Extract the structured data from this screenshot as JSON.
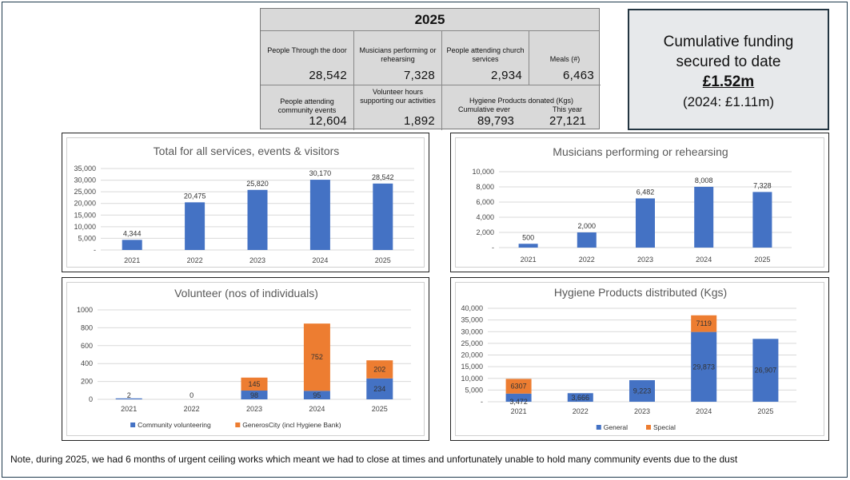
{
  "stats": {
    "year": "2025",
    "cells": [
      {
        "label": "People Through the door",
        "value": "28,542"
      },
      {
        "label": "Musicians performing or rehearsing",
        "value": "7,328"
      },
      {
        "label": "People attending church services",
        "value": "2,934"
      },
      {
        "label": "Meals (#)",
        "value": "6,463"
      },
      {
        "label": "People attending community events",
        "value": "12,604"
      },
      {
        "label": "Volunteer hours supporting our activities",
        "value": "1,892"
      },
      {
        "label": "Hygiene Products donated (Kgs)",
        "sub1": "Cumulative ever",
        "sub2": "This year",
        "value1": "89,793",
        "value2": "27,121"
      }
    ]
  },
  "funding": {
    "line1": "Cumulative funding",
    "line2": "secured to date",
    "amount": "£1.52m",
    "previous": "(2024: £1.11m)"
  },
  "note": "Note, during 2025, we had 6 months of urgent ceiling works which meant we had to close at times and unfortunately unable to hold many community events due to the dust",
  "colors": {
    "blue": "#4472c4",
    "orange": "#ed7d31",
    "grid": "#d9d9d9"
  },
  "chart_data": [
    {
      "type": "bar",
      "title": "Total for all services, events & visitors",
      "categories": [
        "2021",
        "2022",
        "2023",
        "2024",
        "2025"
      ],
      "values": [
        4344,
        20475,
        25820,
        30170,
        28542
      ],
      "value_labels": [
        "4,344",
        "20,475",
        "25,820",
        "30,170",
        "28,542"
      ],
      "ylim": [
        0,
        35000
      ],
      "yticks": [
        0,
        5000,
        10000,
        15000,
        20000,
        25000,
        30000,
        35000
      ],
      "ytick_labels": [
        "-",
        "5,000",
        "10,000",
        "15,000",
        "20,000",
        "25,000",
        "30,000",
        "35,000"
      ]
    },
    {
      "type": "bar",
      "title": "Musicians performing or rehearsing",
      "categories": [
        "2021",
        "2022",
        "2023",
        "2024",
        "2025"
      ],
      "values": [
        500,
        2000,
        6482,
        8008,
        7328
      ],
      "value_labels": [
        "500",
        "2,000",
        "6,482",
        "8,008",
        "7,328"
      ],
      "ylim": [
        0,
        10000
      ],
      "yticks": [
        0,
        2000,
        4000,
        6000,
        8000,
        10000
      ],
      "ytick_labels": [
        "-",
        "2,000",
        "4,000",
        "6,000",
        "8,000",
        "10,000"
      ]
    },
    {
      "type": "stacked-bar",
      "title": "Volunteer (nos of individuals)",
      "categories": [
        "2021",
        "2022",
        "2023",
        "2024",
        "2025"
      ],
      "series": [
        {
          "name": "Community volunteering",
          "values": [
            2,
            0,
            98,
            95,
            234
          ],
          "value_labels": [
            "2",
            "0",
            "98",
            "95",
            "234"
          ]
        },
        {
          "name": "GenerosCity (incl Hygiene Bank)",
          "values": [
            0,
            0,
            145,
            752,
            202
          ],
          "value_labels": [
            "",
            "",
            "145",
            "752",
            "202"
          ]
        }
      ],
      "ylim": [
        0,
        1000
      ],
      "yticks": [
        0,
        200,
        400,
        600,
        800,
        1000
      ],
      "ytick_labels": [
        "0",
        "200",
        "400",
        "600",
        "800",
        "1000"
      ]
    },
    {
      "type": "stacked-bar",
      "title": "Hygiene Products distributed (Kgs)",
      "categories": [
        "2021",
        "2022",
        "2023",
        "2024",
        "2025"
      ],
      "series": [
        {
          "name": "General",
          "values": [
            3472,
            3666,
            9223,
            29873,
            26907
          ],
          "value_labels": [
            "3,472",
            "3,666",
            "9,223",
            "29,873",
            "26,907"
          ]
        },
        {
          "name": "Special",
          "values": [
            6307,
            0,
            0,
            7119,
            0
          ],
          "value_labels": [
            "6307",
            "",
            "",
            "7119",
            ""
          ]
        }
      ],
      "ylim": [
        0,
        40000
      ],
      "yticks": [
        0,
        5000,
        10000,
        15000,
        20000,
        25000,
        30000,
        35000,
        40000
      ],
      "ytick_labels": [
        "-",
        "5,000",
        "10,000",
        "15,000",
        "20,000",
        "25,000",
        "30,000",
        "35,000",
        "40,000"
      ]
    }
  ]
}
